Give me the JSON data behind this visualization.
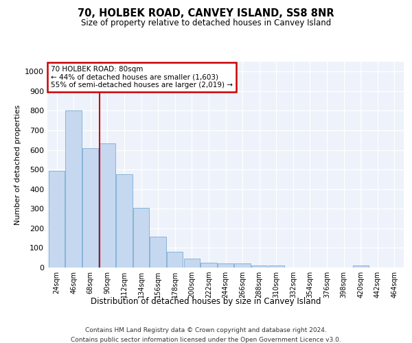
{
  "title": "70, HOLBEK ROAD, CANVEY ISLAND, SS8 8NR",
  "subtitle": "Size of property relative to detached houses in Canvey Island",
  "xlabel": "Distribution of detached houses by size in Canvey Island",
  "ylabel": "Number of detached properties",
  "footer_line1": "Contains HM Land Registry data © Crown copyright and database right 2024.",
  "footer_line2": "Contains public sector information licensed under the Open Government Licence v3.0.",
  "annotation_title": "70 HOLBEK ROAD: 80sqm",
  "annotation_line2": "← 44% of detached houses are smaller (1,603)",
  "annotation_line3": "55% of semi-detached houses are larger (2,019) →",
  "bar_color": "#c5d8f0",
  "bar_edge_color": "#7aadd4",
  "vline_color": "#cc0000",
  "annotation_box_edge_color": "#cc0000",
  "background_color": "#eef2fa",
  "plot_bg_color": "#eef2fa",
  "categories": [
    "24sqm",
    "46sqm",
    "68sqm",
    "90sqm",
    "112sqm",
    "134sqm",
    "156sqm",
    "178sqm",
    "200sqm",
    "222sqm",
    "244sqm",
    "266sqm",
    "288sqm",
    "310sqm",
    "332sqm",
    "354sqm",
    "376sqm",
    "398sqm",
    "420sqm",
    "442sqm",
    "464sqm"
  ],
  "values": [
    495,
    800,
    610,
    635,
    475,
    305,
    158,
    80,
    47,
    26,
    22,
    20,
    12,
    10,
    0,
    0,
    0,
    0,
    10,
    0,
    0
  ],
  "vline_x": 2.52,
  "ylim": [
    0,
    1050
  ],
  "yticks": [
    0,
    100,
    200,
    300,
    400,
    500,
    600,
    700,
    800,
    900,
    1000
  ]
}
